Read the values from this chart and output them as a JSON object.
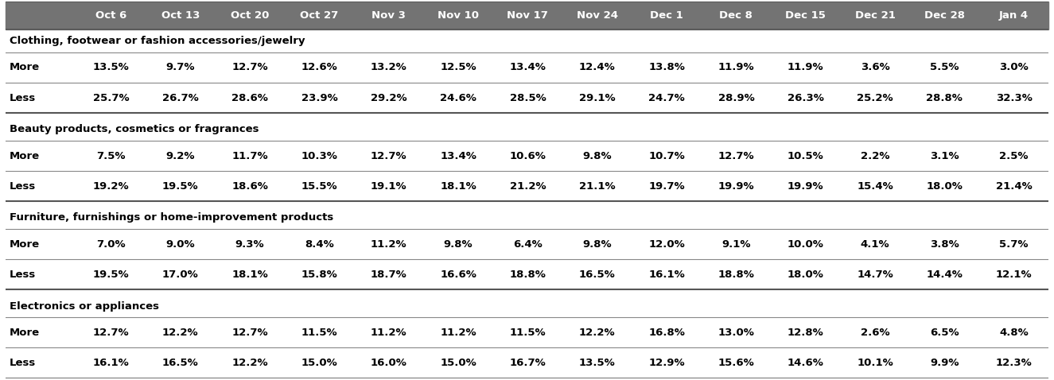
{
  "columns": [
    "",
    "Oct 6",
    "Oct 13",
    "Oct 20",
    "Oct 27",
    "Nov 3",
    "Nov 10",
    "Nov 17",
    "Nov 24",
    "Dec 1",
    "Dec 8",
    "Dec 15",
    "Dec 21",
    "Dec 28",
    "Jan 4"
  ],
  "header_bg": "#737373",
  "header_fg": "#ffffff",
  "body_fg": "#000000",
  "sections": [
    {
      "label": "Clothing, footwear or fashion accessories/jewelry",
      "rows": [
        {
          "name": "More",
          "values": [
            "13.5%",
            "9.7%",
            "12.7%",
            "12.6%",
            "13.2%",
            "12.5%",
            "13.4%",
            "12.4%",
            "13.8%",
            "11.9%",
            "11.9%",
            "3.6%",
            "5.5%",
            "3.0%"
          ]
        },
        {
          "name": "Less",
          "values": [
            "25.7%",
            "26.7%",
            "28.6%",
            "23.9%",
            "29.2%",
            "24.6%",
            "28.5%",
            "29.1%",
            "24.7%",
            "28.9%",
            "26.3%",
            "25.2%",
            "28.8%",
            "32.3%"
          ]
        }
      ]
    },
    {
      "label": "Beauty products, cosmetics or fragrances",
      "rows": [
        {
          "name": "More",
          "values": [
            "7.5%",
            "9.2%",
            "11.7%",
            "10.3%",
            "12.7%",
            "13.4%",
            "10.6%",
            "9.8%",
            "10.7%",
            "12.7%",
            "10.5%",
            "2.2%",
            "3.1%",
            "2.5%"
          ]
        },
        {
          "name": "Less",
          "values": [
            "19.2%",
            "19.5%",
            "18.6%",
            "15.5%",
            "19.1%",
            "18.1%",
            "21.2%",
            "21.1%",
            "19.7%",
            "19.9%",
            "19.9%",
            "15.4%",
            "18.0%",
            "21.4%"
          ]
        }
      ]
    },
    {
      "label": "Furniture, furnishings or home-improvement products",
      "rows": [
        {
          "name": "More",
          "values": [
            "7.0%",
            "9.0%",
            "9.3%",
            "8.4%",
            "11.2%",
            "9.8%",
            "6.4%",
            "9.8%",
            "12.0%",
            "9.1%",
            "10.0%",
            "4.1%",
            "3.8%",
            "5.7%"
          ]
        },
        {
          "name": "Less",
          "values": [
            "19.5%",
            "17.0%",
            "18.1%",
            "15.8%",
            "18.7%",
            "16.6%",
            "18.8%",
            "16.5%",
            "16.1%",
            "18.8%",
            "18.0%",
            "14.7%",
            "14.4%",
            "12.1%"
          ]
        }
      ]
    },
    {
      "label": "Electronics or appliances",
      "rows": [
        {
          "name": "More",
          "values": [
            "12.7%",
            "12.2%",
            "12.7%",
            "11.5%",
            "11.2%",
            "11.2%",
            "11.5%",
            "12.2%",
            "16.8%",
            "13.0%",
            "12.8%",
            "2.6%",
            "6.5%",
            "4.8%"
          ]
        },
        {
          "name": "Less",
          "values": [
            "16.1%",
            "16.5%",
            "12.2%",
            "15.0%",
            "16.0%",
            "15.0%",
            "16.7%",
            "13.5%",
            "12.9%",
            "15.6%",
            "14.6%",
            "10.1%",
            "9.9%",
            "12.3%"
          ]
        }
      ]
    }
  ],
  "figsize": [
    13.25,
    4.78
  ],
  "dpi": 100,
  "font_size": 9.5,
  "header_font_size": 9.5
}
